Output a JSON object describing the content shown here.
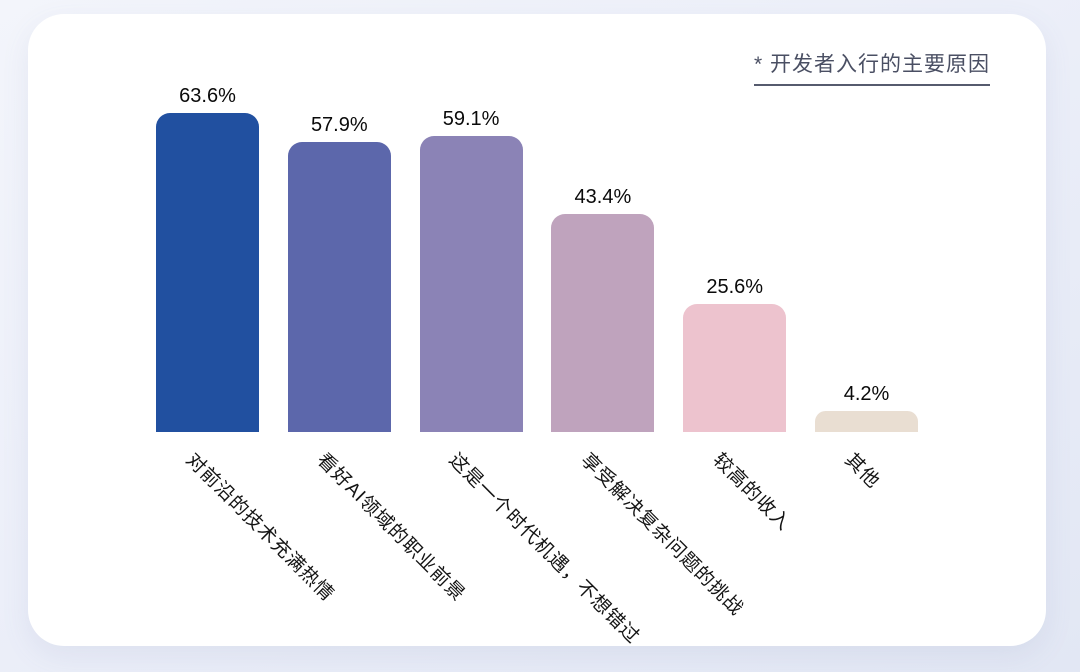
{
  "chart_data": {
    "type": "bar",
    "title": "* 开发者入行的主要原因",
    "categories": [
      "对前沿的技术充满热情",
      "看好AI领域的职业前景",
      "这是一个时代机遇，不想错过",
      "享受解决复杂问题的挑战",
      "较高的收入",
      "其他"
    ],
    "values": [
      63.6,
      57.9,
      59.1,
      43.4,
      25.6,
      4.2
    ],
    "value_labels": [
      "63.6%",
      "57.9%",
      "59.1%",
      "43.4%",
      "25.6%",
      "4.2%"
    ],
    "value_suffix": "%",
    "bar_colors": [
      "#2150a0",
      "#5c67ab",
      "#8b83b6",
      "#bfa3bd",
      "#edc3ce",
      "#e9ded2"
    ],
    "xlabel": "",
    "ylabel": "",
    "ylim": [
      0,
      70
    ],
    "grid": false,
    "legend": false,
    "bar_label_position": "above",
    "category_label_rotation_deg": 45
  },
  "colors": {
    "background": "#eceff9",
    "card": "#ffffff",
    "title_text": "#4a4f63",
    "value_label_text": "#0a0a0a",
    "category_label_text": "#141414"
  }
}
